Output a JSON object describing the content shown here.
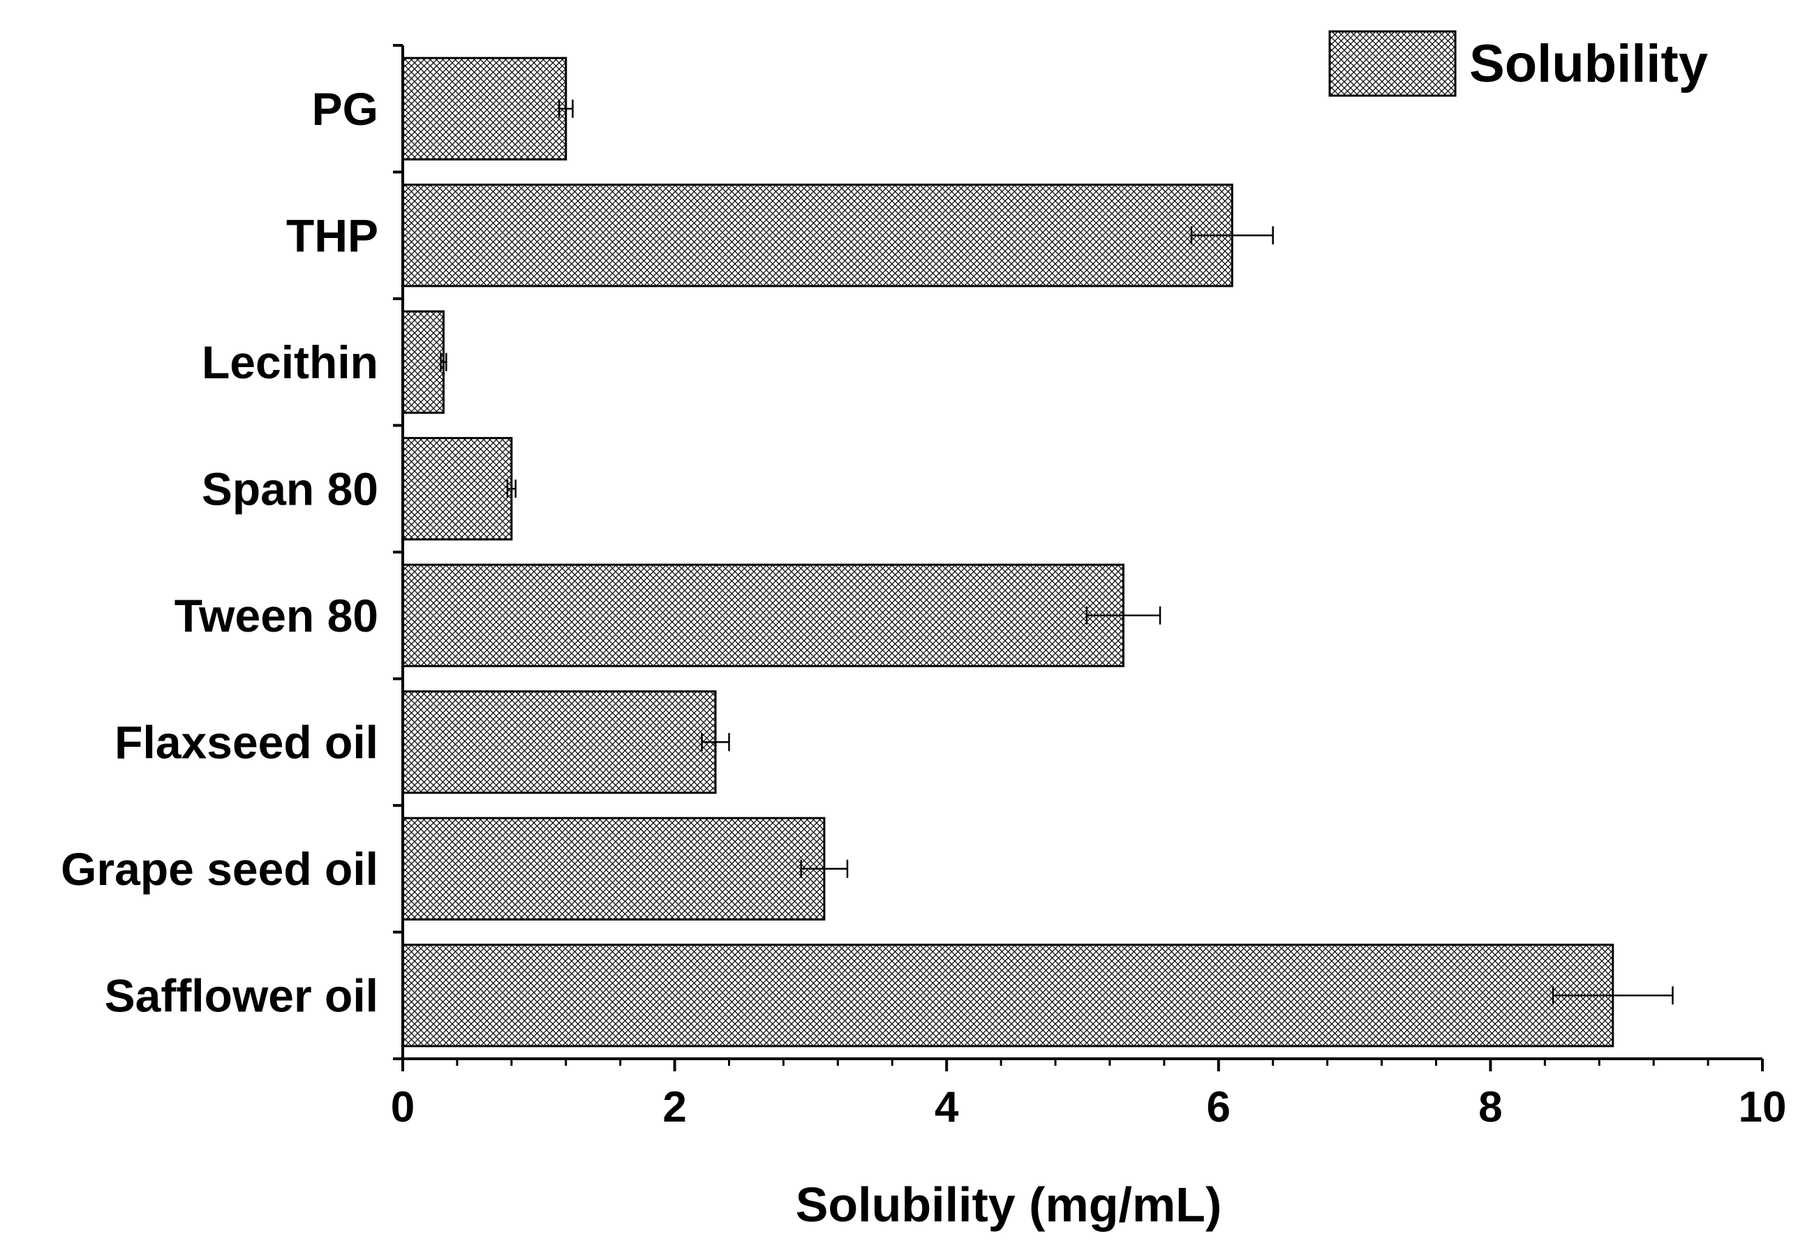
{
  "chart_data": {
    "type": "bar",
    "orientation": "horizontal",
    "title": "",
    "xlabel": "Solubility (mg/mL)",
    "ylabel": "",
    "xlim": [
      0,
      10
    ],
    "xticks": [
      0,
      2,
      4,
      6,
      8,
      10
    ],
    "grid": false,
    "legend_position": "top-right",
    "categories": [
      "PG",
      "THP",
      "Lecithin",
      "Span 80",
      "Tween 80",
      "Flaxseed oil",
      "Grape seed oil",
      "Safflower oil"
    ],
    "series": [
      {
        "name": "Solubility",
        "pattern": "crosshatch",
        "values": [
          1.2,
          6.1,
          0.3,
          0.8,
          5.3,
          2.3,
          3.1,
          8.9
        ],
        "errors": [
          0.05,
          0.3,
          0.02,
          0.03,
          0.27,
          0.1,
          0.17,
          0.44
        ]
      }
    ]
  },
  "colors": {
    "axis": "#000000",
    "bar_fill": "#ffffff",
    "hatch": "#000000"
  }
}
